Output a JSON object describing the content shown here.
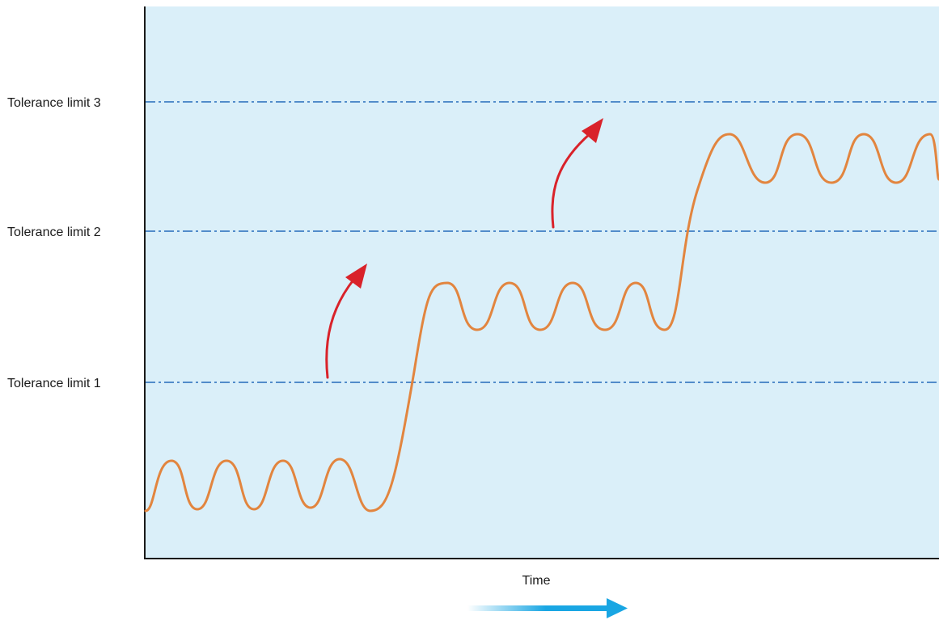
{
  "diagram": {
    "tolerance_limits": [
      {
        "label": "Tolerance limit 1"
      },
      {
        "label": "Tolerance limit 2"
      },
      {
        "label": "Tolerance limit 3"
      }
    ],
    "x_axis_label": "Time",
    "colors": {
      "background_panel": "#daeff9",
      "limit_line": "#3f7fc4",
      "signal_curve": "#e2853f",
      "step_arrow": "#d9222a",
      "time_arrow": "#19a6e3",
      "axis": "#1a1a1a"
    }
  }
}
